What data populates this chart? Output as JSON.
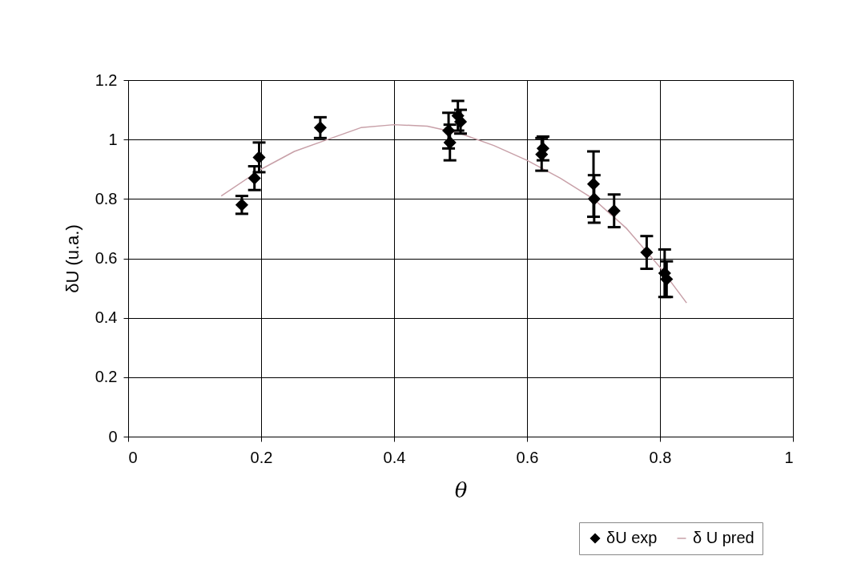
{
  "chart_data": {
    "type": "scatter",
    "xlabel": "θ",
    "ylabel": "δU (u.a.)",
    "xlim": [
      0,
      1
    ],
    "ylim": [
      0,
      1.2
    ],
    "xticks": [
      0,
      0.2,
      0.4,
      0.6,
      0.8,
      1
    ],
    "yticks": [
      0,
      0.2,
      0.4,
      0.6,
      0.8,
      1,
      1.2
    ],
    "grid": true,
    "legend": "bottom right",
    "series": [
      {
        "name": "δU exp",
        "marker": "diamond",
        "color": "#000000",
        "x": [
          0.171,
          0.19,
          0.197,
          0.289,
          0.482,
          0.484,
          0.496,
          0.5,
          0.622,
          0.624,
          0.7,
          0.701,
          0.731,
          0.78,
          0.807,
          0.81
        ],
        "values": [
          0.78,
          0.87,
          0.94,
          1.04,
          1.03,
          0.99,
          1.08,
          1.06,
          0.95,
          0.97,
          0.85,
          0.8,
          0.76,
          0.62,
          0.55,
          0.53
        ],
        "errors": [
          0.03,
          0.04,
          0.05,
          0.035,
          0.06,
          0.06,
          0.05,
          0.04,
          0.055,
          0.04,
          0.11,
          0.08,
          0.055,
          0.055,
          0.08,
          0.06
        ]
      },
      {
        "name": "δ U pred",
        "type": "line",
        "color": "#c8a0a8",
        "x": [
          0.14,
          0.2,
          0.25,
          0.3,
          0.35,
          0.4,
          0.45,
          0.5,
          0.55,
          0.6,
          0.65,
          0.7,
          0.75,
          0.8,
          0.84
        ],
        "values": [
          0.81,
          0.9,
          0.96,
          1.0,
          1.04,
          1.05,
          1.045,
          1.02,
          0.98,
          0.93,
          0.87,
          0.8,
          0.7,
          0.57,
          0.45
        ]
      }
    ]
  }
}
